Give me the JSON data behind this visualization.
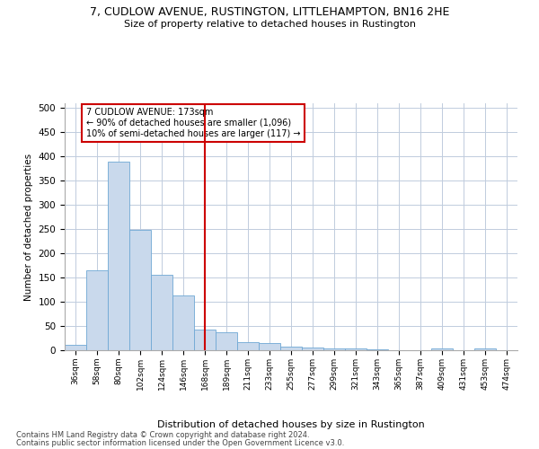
{
  "title": "7, CUDLOW AVENUE, RUSTINGTON, LITTLEHAMPTON, BN16 2HE",
  "subtitle": "Size of property relative to detached houses in Rustington",
  "xlabel": "Distribution of detached houses by size in Rustington",
  "ylabel": "Number of detached properties",
  "categories": [
    "36sqm",
    "58sqm",
    "80sqm",
    "102sqm",
    "124sqm",
    "146sqm",
    "168sqm",
    "189sqm",
    "211sqm",
    "233sqm",
    "255sqm",
    "277sqm",
    "299sqm",
    "321sqm",
    "343sqm",
    "365sqm",
    "387sqm",
    "409sqm",
    "431sqm",
    "453sqm",
    "474sqm"
  ],
  "values": [
    11,
    165,
    390,
    248,
    155,
    113,
    42,
    38,
    17,
    14,
    8,
    6,
    4,
    3,
    2,
    0,
    0,
    3,
    0,
    4,
    0
  ],
  "bar_color": "#c9d9ec",
  "bar_edge_color": "#6fa8d4",
  "vline_x_index": 6,
  "vline_color": "#cc0000",
  "annotation_text": "7 CUDLOW AVENUE: 173sqm\n← 90% of detached houses are smaller (1,096)\n10% of semi-detached houses are larger (117) →",
  "annotation_box_color": "#ffffff",
  "annotation_edge_color": "#cc0000",
  "ylim": [
    0,
    510
  ],
  "yticks": [
    0,
    50,
    100,
    150,
    200,
    250,
    300,
    350,
    400,
    450,
    500
  ],
  "footer_line1": "Contains HM Land Registry data © Crown copyright and database right 2024.",
  "footer_line2": "Contains public sector information licensed under the Open Government Licence v3.0.",
  "bg_color": "#ffffff",
  "grid_color": "#c0ccdd"
}
